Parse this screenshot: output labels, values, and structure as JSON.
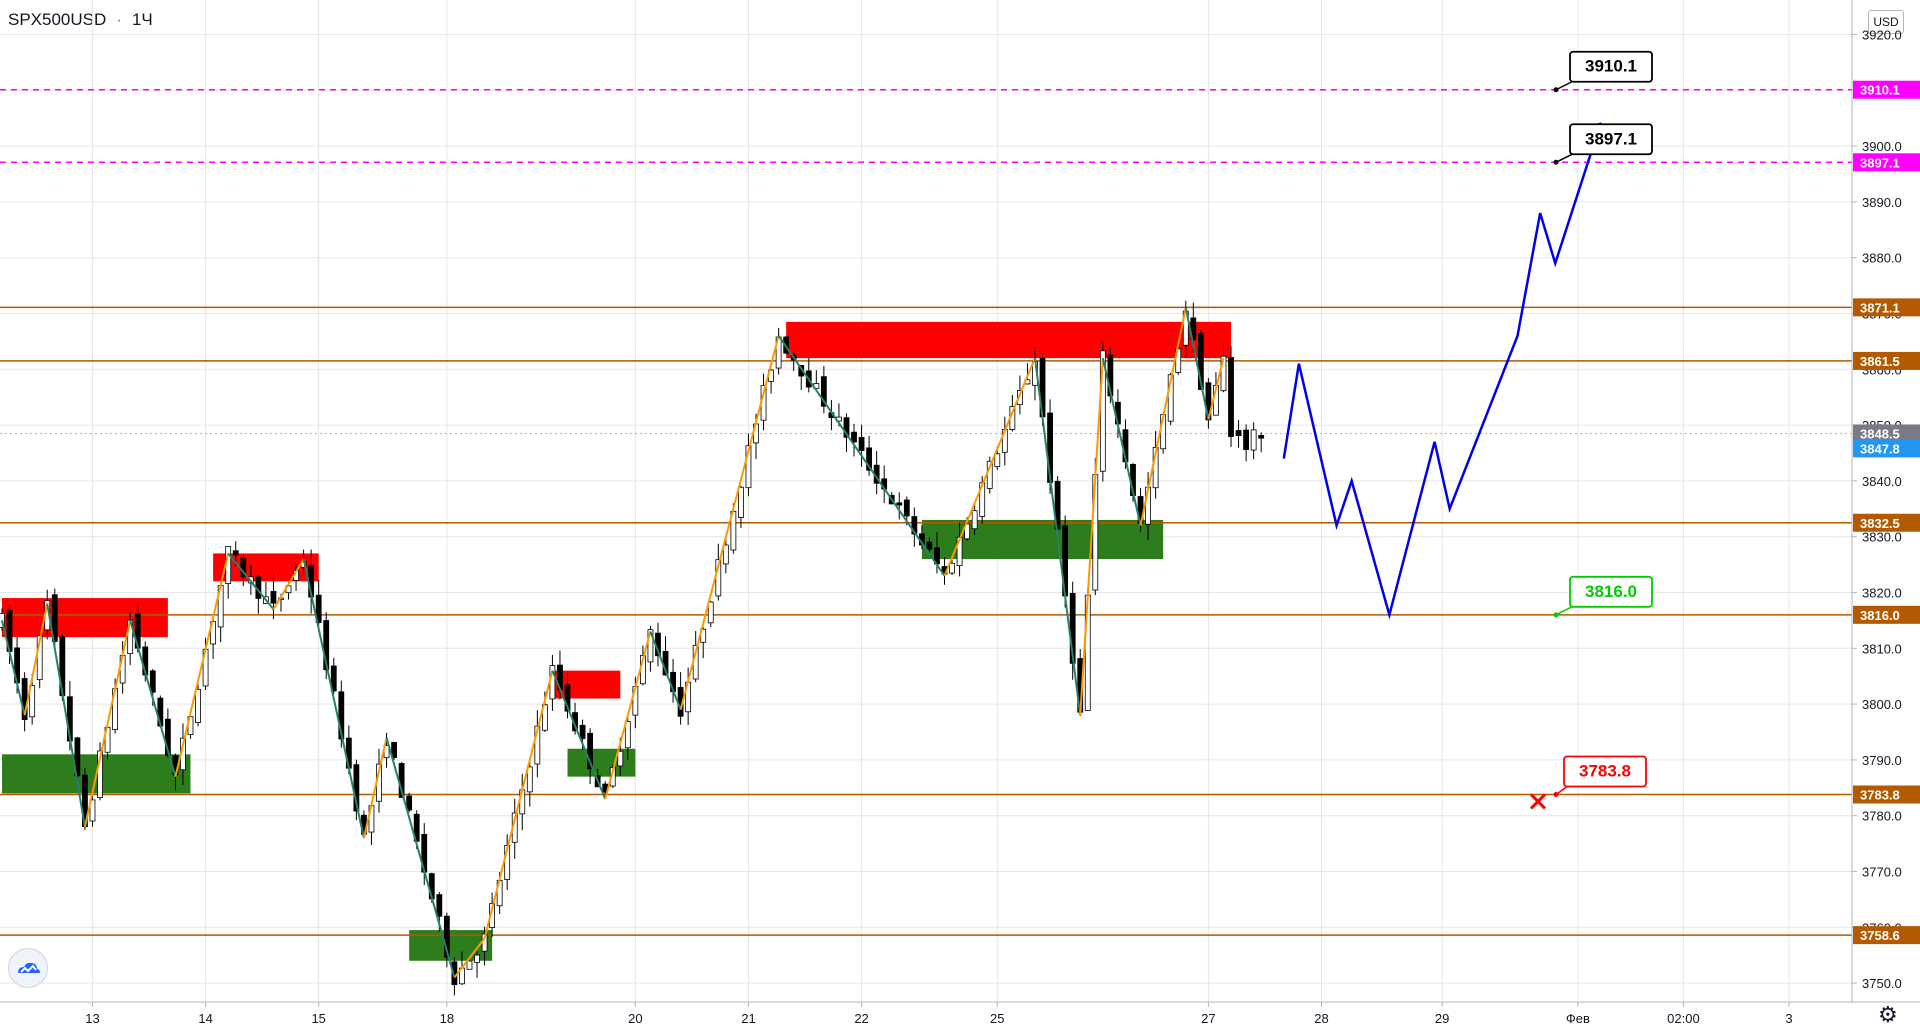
{
  "header": {
    "symbol": "SPX500USD",
    "interval": "1Ч",
    "currency": "USD"
  },
  "colors": {
    "bull": "#ffffff",
    "bear": "#000000",
    "grid": "#e6e6e6",
    "level": "#b35900",
    "target": "#ff00ff",
    "zigzag_up": "#ff9800",
    "zigzag_down": "#26806b",
    "forecast": "#0000ee",
    "supply": "#ff0000",
    "demand": "#2e7d1d",
    "last_price": "#2196f3",
    "prev_close": "#787b86"
  },
  "chart_data": {
    "type": "candlestick",
    "symbol": "SPX500USD",
    "interval": "1H",
    "y_range": [
      3746,
      3925
    ],
    "y_ticks": [
      "3920.0",
      "3910.0",
      "3900.0",
      "3890.0",
      "3880.0",
      "3870.0",
      "3860.0",
      "3850.0",
      "3840.0",
      "3830.0",
      "3820.0",
      "3810.0",
      "3800.0",
      "3790.0",
      "3780.0",
      "3770.0",
      "3760.0",
      "3750.0"
    ],
    "x_ticks": [
      "13",
      "14",
      "15",
      "18",
      "20",
      "21",
      "22",
      "25",
      "27",
      "28",
      "29",
      "Фев",
      "02:00",
      "3"
    ],
    "levels": [
      {
        "label": "3871.1",
        "value": 3871.1,
        "style": "solid",
        "color": "#b35900"
      },
      {
        "label": "3861.5",
        "value": 3861.5,
        "style": "solid",
        "color": "#b35900"
      },
      {
        "label": "3832.5",
        "value": 3832.5,
        "style": "solid",
        "color": "#b35900"
      },
      {
        "label": "3816.0",
        "value": 3816.0,
        "style": "solid",
        "color": "#b35900"
      },
      {
        "label": "3783.8",
        "value": 3783.8,
        "style": "solid",
        "color": "#b35900"
      },
      {
        "label": "3758.6",
        "value": 3758.6,
        "style": "solid",
        "color": "#b35900"
      },
      {
        "label": "3910.1",
        "value": 3910.1,
        "style": "dashed",
        "color": "#ff00ff"
      },
      {
        "label": "3897.1",
        "value": 3897.1,
        "style": "dashed",
        "color": "#ff00ff"
      }
    ],
    "price_labels": [
      {
        "label": "3848.5",
        "value": 3848.5,
        "color": "#787b86"
      },
      {
        "label": "3847.8",
        "value": 3847.8,
        "color": "#2196f3"
      }
    ],
    "callouts": [
      {
        "label": "3910.1",
        "value": 3910.1,
        "color": "#000000"
      },
      {
        "label": "3897.1",
        "value": 3897.1,
        "color": "#000000"
      },
      {
        "label": "3816.0",
        "value": 3816.0,
        "color": "#00cc00"
      },
      {
        "label": "3783.8",
        "value": 3783.8,
        "color": "#ff0000"
      }
    ],
    "zones": [
      {
        "kind": "supply",
        "t0": 0,
        "t1": 22,
        "p0": 3812,
        "p1": 3819
      },
      {
        "kind": "supply",
        "t0": 28,
        "t1": 42,
        "p0": 3822,
        "p1": 3827
      },
      {
        "kind": "supply",
        "t0": 73,
        "t1": 82,
        "p0": 3801,
        "p1": 3806
      },
      {
        "kind": "supply",
        "t0": 104,
        "t1": 163,
        "p0": 3862,
        "p1": 3868.5
      },
      {
        "kind": "demand",
        "t0": 0,
        "t1": 25,
        "p0": 3784,
        "p1": 3791
      },
      {
        "kind": "demand",
        "t0": 54,
        "t1": 65,
        "p0": 3754,
        "p1": 3759.5
      },
      {
        "kind": "demand",
        "t0": 75,
        "t1": 84,
        "p0": 3787,
        "p1": 3792
      },
      {
        "kind": "demand",
        "t0": 122,
        "t1": 154,
        "p0": 3826,
        "p1": 3833
      }
    ],
    "zigzag": [
      [
        0,
        3815
      ],
      [
        3,
        3798
      ],
      [
        6,
        3818
      ],
      [
        11,
        3778
      ],
      [
        17,
        3815
      ],
      [
        23,
        3787
      ],
      [
        30,
        3827
      ],
      [
        36,
        3817
      ],
      [
        40,
        3826
      ],
      [
        48,
        3776
      ],
      [
        51,
        3794
      ],
      [
        60,
        3751
      ],
      [
        64,
        3758
      ],
      [
        73,
        3806
      ],
      [
        80,
        3783
      ],
      [
        86,
        3813
      ],
      [
        90,
        3799
      ],
      [
        103,
        3866
      ],
      [
        125,
        3823
      ],
      [
        137,
        3862
      ],
      [
        143,
        3798
      ],
      [
        146,
        3862
      ],
      [
        151,
        3832
      ],
      [
        157,
        3871
      ],
      [
        160,
        3851
      ],
      [
        162,
        3862
      ]
    ],
    "forecast": [
      [
        170,
        3844
      ],
      [
        172,
        3861
      ],
      [
        177,
        3832
      ],
      [
        179,
        3840
      ],
      [
        184,
        3816
      ],
      [
        190,
        3847
      ],
      [
        192,
        3835
      ],
      [
        201,
        3866
      ],
      [
        204,
        3888
      ],
      [
        206,
        3879
      ],
      [
        212,
        3904
      ]
    ],
    "x_positions": [
      {
        "label": "13",
        "t": 12
      },
      {
        "label": "14",
        "t": 27
      },
      {
        "label": "15",
        "t": 42
      },
      {
        "label": "18",
        "t": 59
      },
      {
        "label": "20",
        "t": 84
      },
      {
        "label": "21",
        "t": 99
      },
      {
        "label": "22",
        "t": 114
      },
      {
        "label": "25",
        "t": 132
      },
      {
        "label": "27",
        "t": 160
      },
      {
        "label": "28",
        "t": 175
      },
      {
        "label": "29",
        "t": 191
      },
      {
        "label": "Фев",
        "t": 209
      },
      {
        "label": "02:00",
        "t": 223
      },
      {
        "label": "3",
        "t": 237
      }
    ]
  }
}
